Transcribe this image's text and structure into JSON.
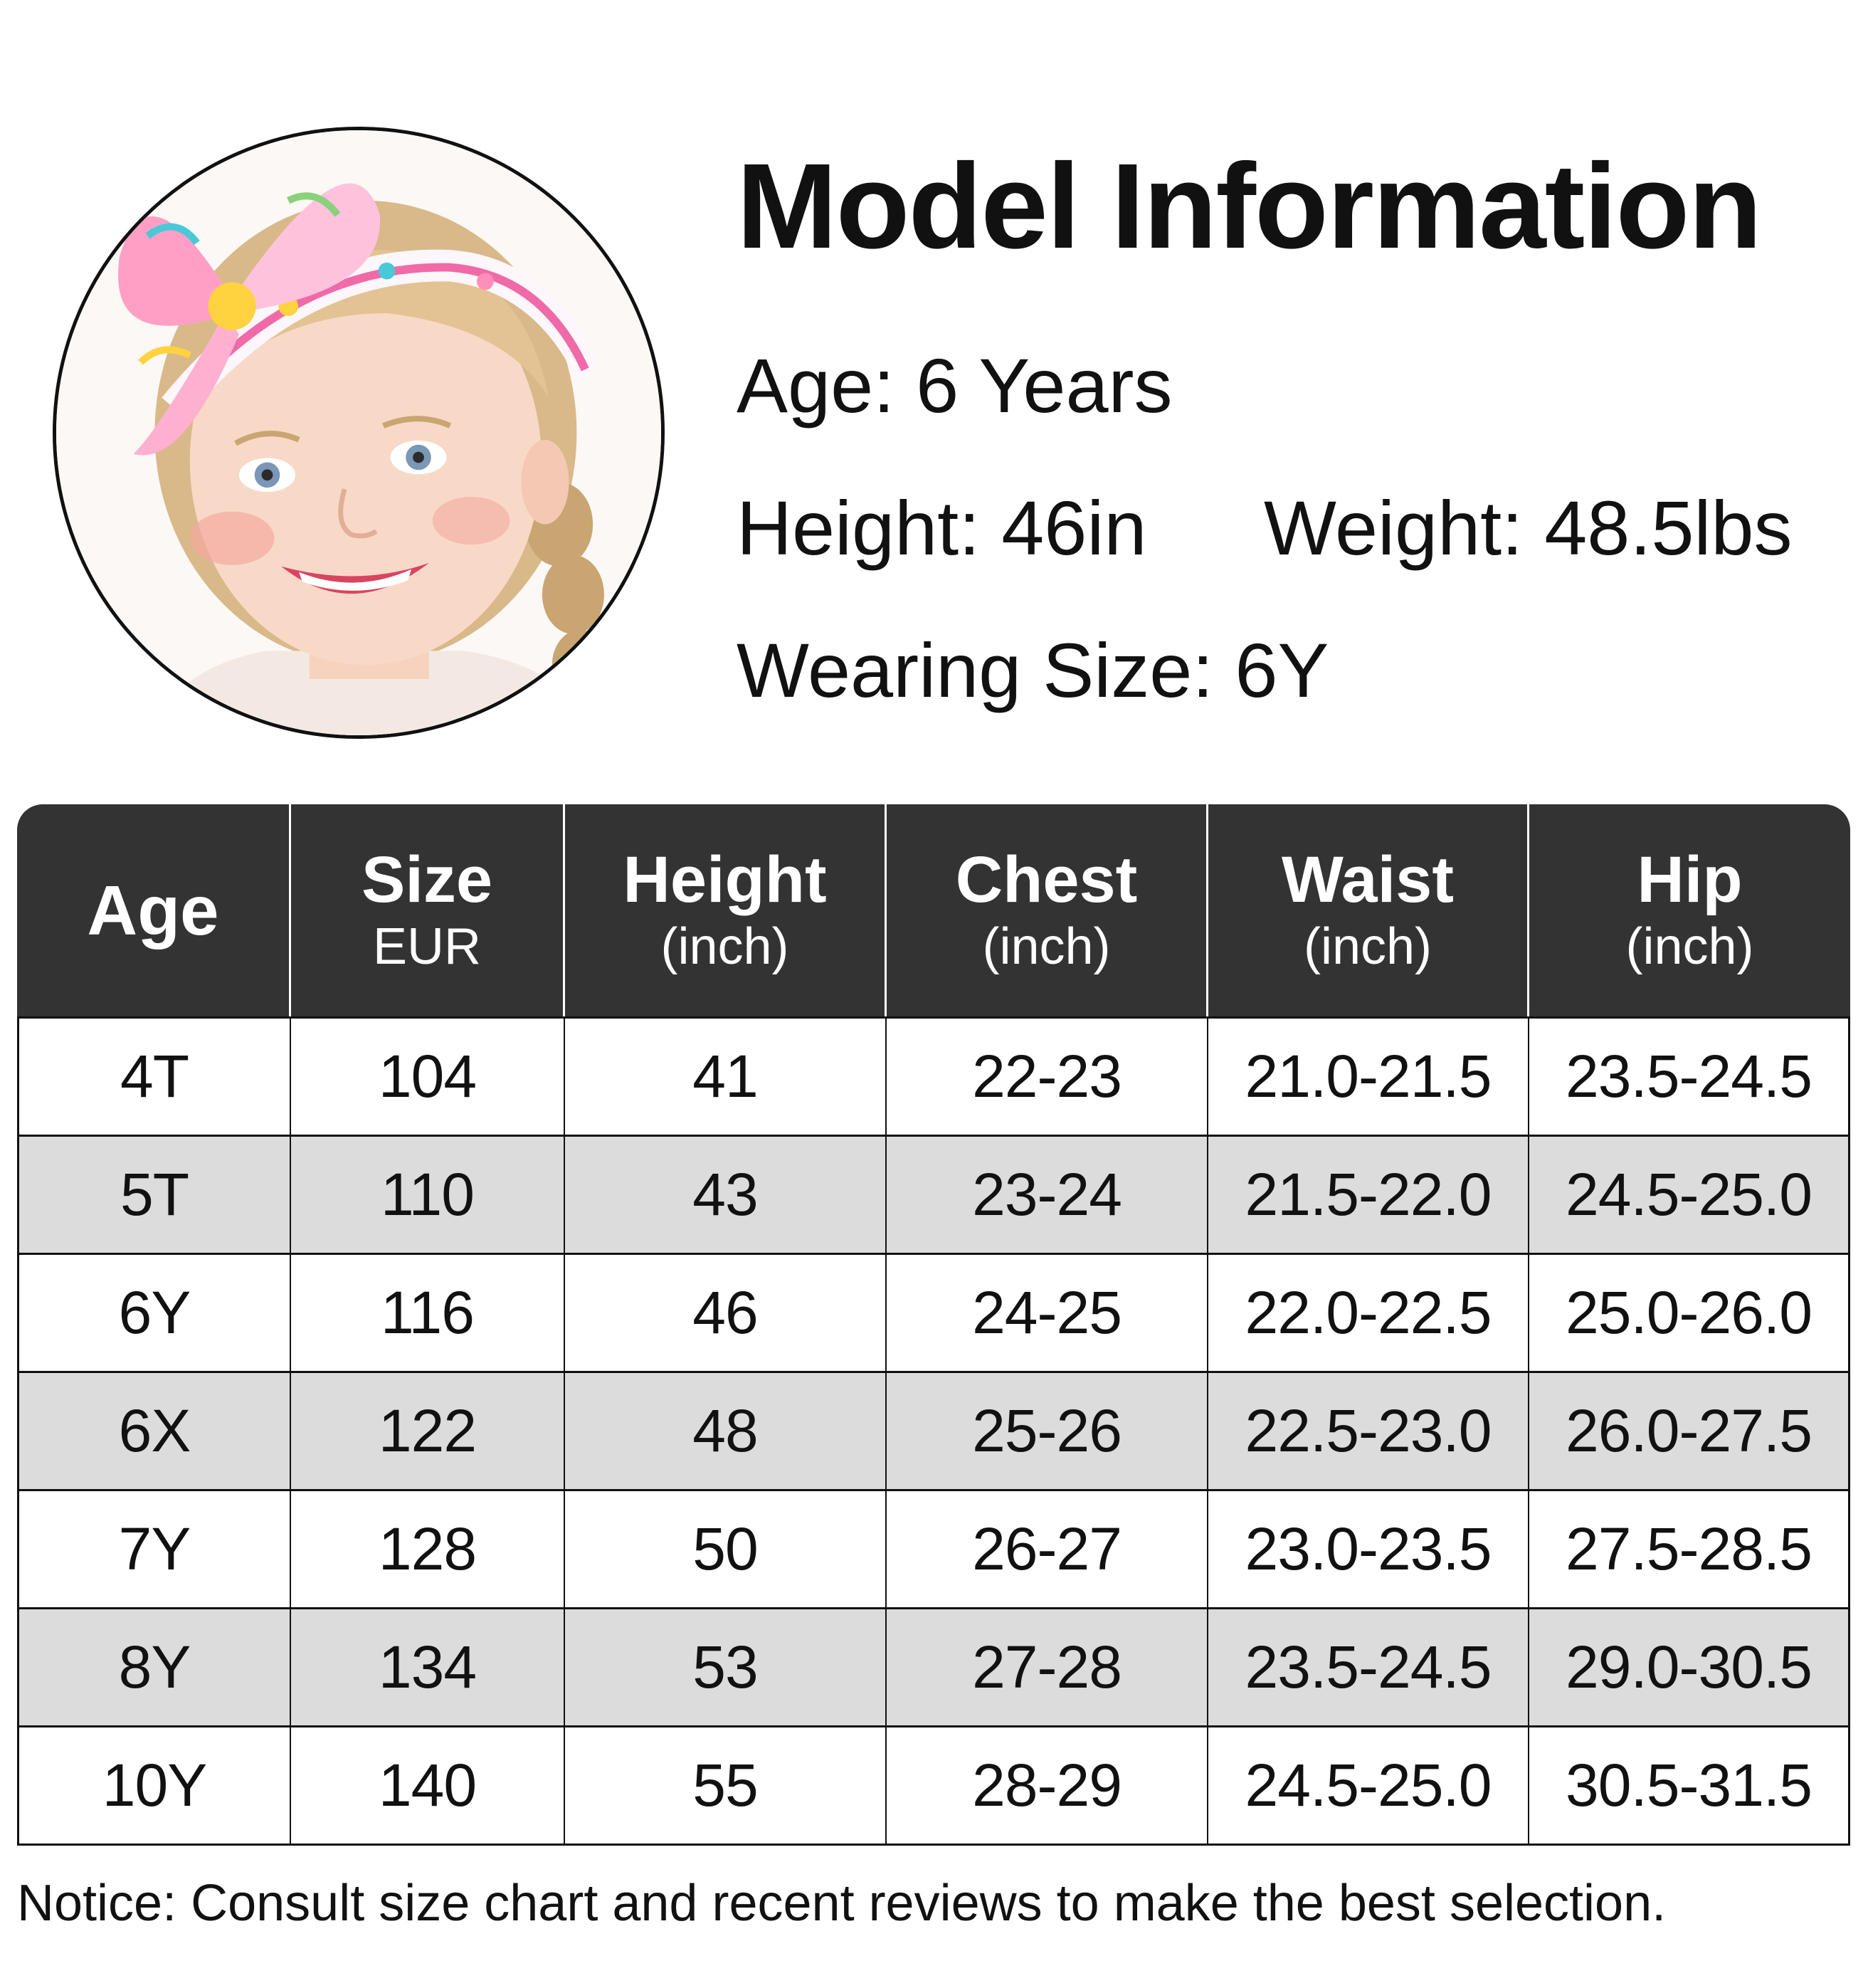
{
  "model": {
    "title": "Model Information",
    "age": "Age: 6 Years",
    "height": "Height: 46in",
    "weight": "Weight: 48.5lbs",
    "wearing_size": "Wearing Size: 6Y"
  },
  "table": {
    "headers": [
      {
        "main": "Age",
        "sub": ""
      },
      {
        "main": "Size",
        "sub": "EUR"
      },
      {
        "main": "Height",
        "sub": "(inch)"
      },
      {
        "main": "Chest",
        "sub": "(inch)"
      },
      {
        "main": "Waist",
        "sub": "(inch)"
      },
      {
        "main": "Hip",
        "sub": "(inch)"
      }
    ],
    "rows": [
      [
        "4T",
        "104",
        "41",
        "22-23",
        "21.0-21.5",
        "23.5-24.5"
      ],
      [
        "5T",
        "110",
        "43",
        "23-24",
        "21.5-22.0",
        "24.5-25.0"
      ],
      [
        "6Y",
        "116",
        "46",
        "24-25",
        "22.0-22.5",
        "25.0-26.0"
      ],
      [
        "6X",
        "122",
        "48",
        "25-26",
        "22.5-23.0",
        "26.0-27.5"
      ],
      [
        "7Y",
        "128",
        "50",
        "26-27",
        "23.0-23.5",
        "27.5-28.5"
      ],
      [
        "8Y",
        "134",
        "53",
        "27-28",
        "23.5-24.5",
        "29.0-30.5"
      ],
      [
        "10Y",
        "140",
        "55",
        "28-29",
        "24.5-25.0",
        "30.5-31.5"
      ]
    ]
  },
  "notice": "Notice: Consult size chart and recent reviews to make the best selection.",
  "colors": {
    "header_bg": "#333333",
    "alt_row_bg": "#dcdcdc",
    "text": "#111111"
  }
}
